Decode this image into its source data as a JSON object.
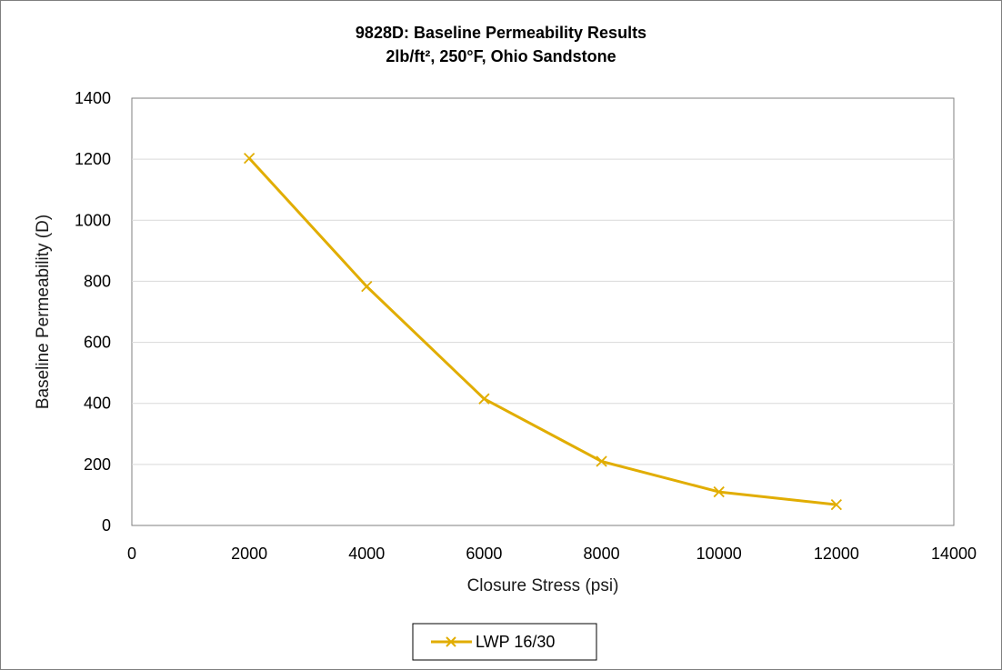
{
  "chart_data": {
    "type": "line",
    "title": "9828D: Baseline Permeability Results",
    "subtitle": "2lb/ft², 250°F, Ohio Sandstone",
    "xlabel": "Closure Stress (psi)",
    "ylabel": "Baseline Permeability (D)",
    "xlim": [
      0,
      14000
    ],
    "ylim": [
      0,
      1400
    ],
    "x_ticks": [
      0,
      2000,
      4000,
      6000,
      8000,
      10000,
      12000,
      14000
    ],
    "y_ticks": [
      0,
      200,
      400,
      600,
      800,
      1000,
      1200,
      1400
    ],
    "grid": "horizontal",
    "legend_position": "bottom",
    "series": [
      {
        "name": "LWP 16/30",
        "color": "#e1ad01",
        "marker": "x",
        "x": [
          2000,
          4000,
          6000,
          8000,
          10000,
          12000
        ],
        "y": [
          1203,
          783,
          415,
          210,
          110,
          68
        ]
      }
    ]
  }
}
